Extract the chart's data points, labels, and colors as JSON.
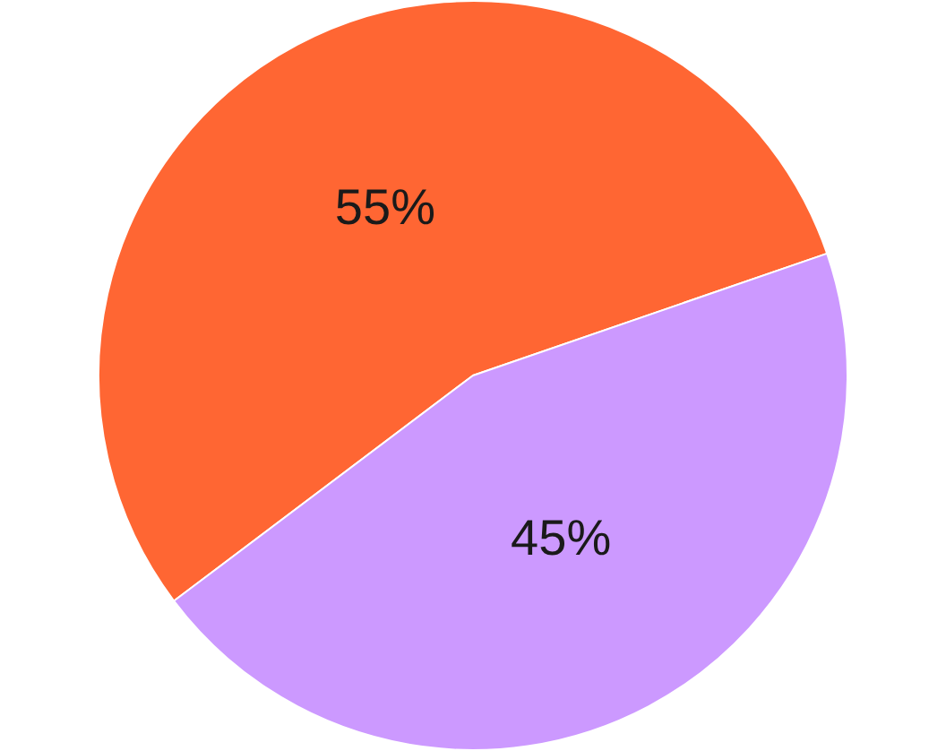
{
  "chart_data": {
    "type": "pie",
    "categories": [
      null,
      null
    ],
    "values": [
      55,
      45
    ],
    "colors": [
      "#ff6633",
      "#cc99ff"
    ],
    "value_labels": [
      "55%",
      "45%"
    ]
  }
}
